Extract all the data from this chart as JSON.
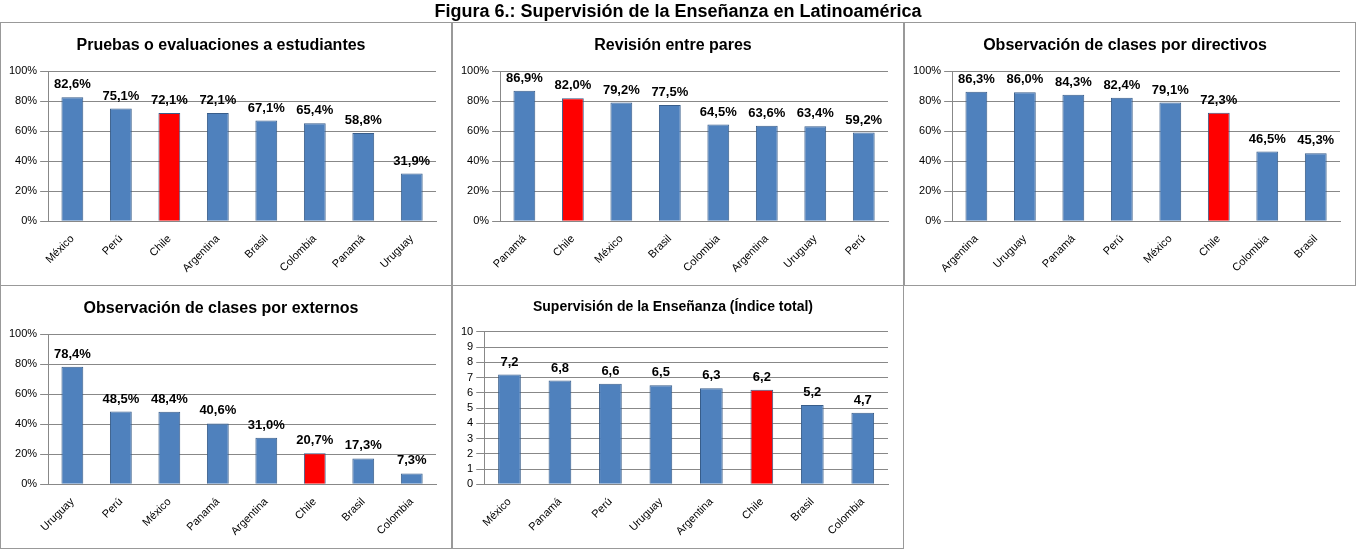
{
  "chart_data": [
    {
      "type": "other",
      "title": "Figura 6.: Supervisión de la Enseñanza en Latinoamérica"
    },
    {
      "type": "bar",
      "title": "Pruebas o evaluaciones a estudiantes",
      "categories": [
        "México",
        "Perú",
        "Chile",
        "Argentina",
        "Brasil",
        "Colombia",
        "Panamá",
        "Uruguay"
      ],
      "values": [
        82.6,
        75.1,
        72.1,
        72.1,
        67.1,
        65.4,
        58.8,
        31.9
      ],
      "colors": [
        "#4f81bd",
        "#4f81bd",
        "#ff0000",
        "#4f81bd",
        "#4f81bd",
        "#4f81bd",
        "#4f81bd",
        "#4f81bd"
      ],
      "value_labels": [
        "82,6%",
        "75,1%",
        "72,1%",
        "72,1%",
        "67,1%",
        "65,4%",
        "58,8%",
        "31,9%"
      ],
      "ylim": [
        0,
        100
      ],
      "yticks": [
        {
          "value": 0,
          "label": "0%"
        },
        {
          "value": 20,
          "label": "20%"
        },
        {
          "value": 40,
          "label": "40%"
        },
        {
          "value": 60,
          "label": "60%"
        },
        {
          "value": 80,
          "label": "80%"
        },
        {
          "value": 100,
          "label": "100%"
        }
      ],
      "grid": "y",
      "legend": false
    },
    {
      "type": "bar",
      "title": "Revisión entre pares",
      "categories": [
        "Panamá",
        "Chile",
        "México",
        "Brasil",
        "Colombia",
        "Argentina",
        "Uruguay",
        "Perú"
      ],
      "values": [
        86.9,
        82.0,
        79.2,
        77.5,
        64.5,
        63.6,
        63.4,
        59.2
      ],
      "colors": [
        "#4f81bd",
        "#ff0000",
        "#4f81bd",
        "#4f81bd",
        "#4f81bd",
        "#4f81bd",
        "#4f81bd",
        "#4f81bd"
      ],
      "value_labels": [
        "86,9%",
        "82,0%",
        "79,2%",
        "77,5%",
        "64,5%",
        "63,6%",
        "63,4%",
        "59,2%"
      ],
      "ylim": [
        0,
        100
      ],
      "yticks": [
        {
          "value": 0,
          "label": "0%"
        },
        {
          "value": 20,
          "label": "20%"
        },
        {
          "value": 40,
          "label": "40%"
        },
        {
          "value": 60,
          "label": "60%"
        },
        {
          "value": 80,
          "label": "80%"
        },
        {
          "value": 100,
          "label": "100%"
        }
      ],
      "grid": "y",
      "legend": false
    },
    {
      "type": "bar",
      "title": "Observación de clases por directivos",
      "categories": [
        "Argentina",
        "Uruguay",
        "Panamá",
        "Perú",
        "México",
        "Chile",
        "Colombia",
        "Brasil"
      ],
      "values": [
        86.3,
        86.0,
        84.3,
        82.4,
        79.1,
        72.3,
        46.5,
        45.3
      ],
      "colors": [
        "#4f81bd",
        "#4f81bd",
        "#4f81bd",
        "#4f81bd",
        "#4f81bd",
        "#ff0000",
        "#4f81bd",
        "#4f81bd"
      ],
      "value_labels": [
        "86,3%",
        "86,0%",
        "84,3%",
        "82,4%",
        "79,1%",
        "72,3%",
        "46,5%",
        "45,3%"
      ],
      "ylim": [
        0,
        100
      ],
      "yticks": [
        {
          "value": 0,
          "label": "0%"
        },
        {
          "value": 20,
          "label": "20%"
        },
        {
          "value": 40,
          "label": "40%"
        },
        {
          "value": 60,
          "label": "60%"
        },
        {
          "value": 80,
          "label": "80%"
        },
        {
          "value": 100,
          "label": "100%"
        }
      ],
      "grid": "y",
      "legend": false
    },
    {
      "type": "bar",
      "title": "Observación de clases por externos",
      "categories": [
        "Uruguay",
        "Perú",
        "México",
        "Panamá",
        "Argentina",
        "Chile",
        "Brasil",
        "Colombia"
      ],
      "values": [
        78.4,
        48.5,
        48.4,
        40.6,
        31.0,
        20.7,
        17.3,
        7.3
      ],
      "colors": [
        "#4f81bd",
        "#4f81bd",
        "#4f81bd",
        "#4f81bd",
        "#4f81bd",
        "#ff0000",
        "#4f81bd",
        "#4f81bd"
      ],
      "value_labels": [
        "78,4%",
        "48,5%",
        "48,4%",
        "40,6%",
        "31,0%",
        "20,7%",
        "17,3%",
        "7,3%"
      ],
      "ylim": [
        0,
        100
      ],
      "yticks": [
        {
          "value": 0,
          "label": "0%"
        },
        {
          "value": 20,
          "label": "20%"
        },
        {
          "value": 40,
          "label": "40%"
        },
        {
          "value": 60,
          "label": "60%"
        },
        {
          "value": 80,
          "label": "80%"
        },
        {
          "value": 100,
          "label": "100%"
        }
      ],
      "grid": "y",
      "legend": false
    },
    {
      "type": "bar",
      "title": "Supervisión de la Enseñanza (Índice total)",
      "categories": [
        "México",
        "Panamá",
        "Perú",
        "Uruguay",
        "Argentina",
        "Chile",
        "Brasil",
        "Colombia"
      ],
      "values": [
        7.2,
        6.8,
        6.6,
        6.5,
        6.3,
        6.2,
        5.2,
        4.7
      ],
      "colors": [
        "#4f81bd",
        "#4f81bd",
        "#4f81bd",
        "#4f81bd",
        "#4f81bd",
        "#ff0000",
        "#4f81bd",
        "#4f81bd"
      ],
      "value_labels": [
        "7,2",
        "6,8",
        "6,6",
        "6,5",
        "6,3",
        "6,2",
        "5,2",
        "4,7"
      ],
      "ylim": [
        0,
        10
      ],
      "yticks": [
        0,
        1,
        2,
        3,
        4,
        5,
        6,
        7,
        8,
        9,
        10
      ],
      "grid": "y",
      "legend": false
    }
  ]
}
